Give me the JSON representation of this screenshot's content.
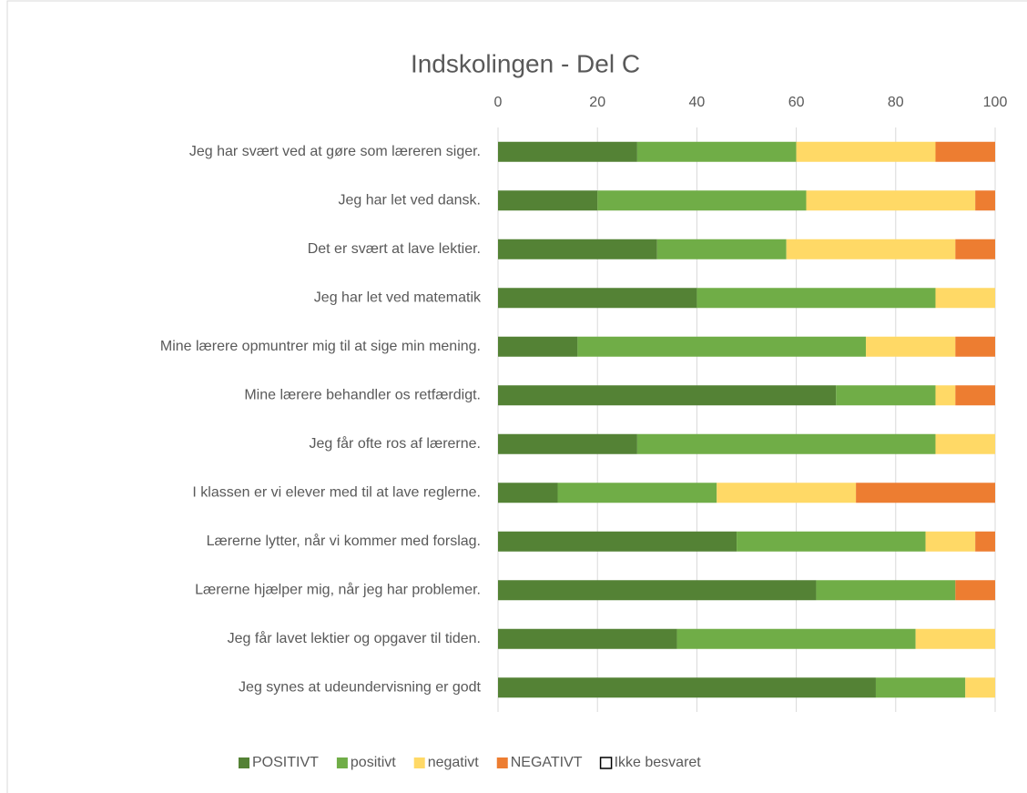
{
  "chart_data": {
    "type": "stacked_bar_horizontal",
    "title": "Indskolingen - Del C",
    "categories": [
      "Jeg har svært ved at gøre som læreren siger.",
      "Jeg har let ved dansk.",
      "Det er svært at lave lektier.",
      "Jeg har let ved matematik",
      "Mine lærere opmuntrer mig til at sige min mening.",
      "Mine lærere behandler os retfærdigt.",
      "Jeg får ofte ros af lærerne.",
      "I klassen er vi elever med til at lave reglerne.",
      "Lærerne lytter, når vi kommer med forslag.",
      "Lærerne hjælper mig, når jeg har problemer.",
      "Jeg får lavet lektier og opgaver til tiden.",
      "Jeg synes at udeundervisning er godt"
    ],
    "series": [
      {
        "name": "POSITIVT",
        "color": "#548235",
        "values": [
          28,
          20,
          32,
          40,
          16,
          68,
          28,
          12,
          48,
          64,
          36,
          76
        ]
      },
      {
        "name": "positivt",
        "color": "#70ad47",
        "values": [
          32,
          42,
          26,
          48,
          58,
          20,
          60,
          32,
          38,
          28,
          48,
          18
        ]
      },
      {
        "name": "negativt",
        "color": "#ffd966",
        "values": [
          28,
          34,
          34,
          12,
          18,
          4,
          12,
          28,
          10,
          0,
          16,
          6
        ]
      },
      {
        "name": "NEGATIVT",
        "color": "#ed7d31",
        "values": [
          12,
          4,
          8,
          0,
          8,
          8,
          0,
          28,
          4,
          8,
          0,
          0
        ]
      },
      {
        "name": "Ikke besvaret",
        "color": "#ffffff",
        "values": [
          0,
          0,
          0,
          0,
          0,
          0,
          0,
          0,
          0,
          0,
          0,
          0
        ]
      }
    ],
    "xlim": [
      0,
      100
    ],
    "xticks": [
      0,
      20,
      40,
      60,
      80,
      100
    ],
    "grid": true,
    "legend": "bottom"
  }
}
